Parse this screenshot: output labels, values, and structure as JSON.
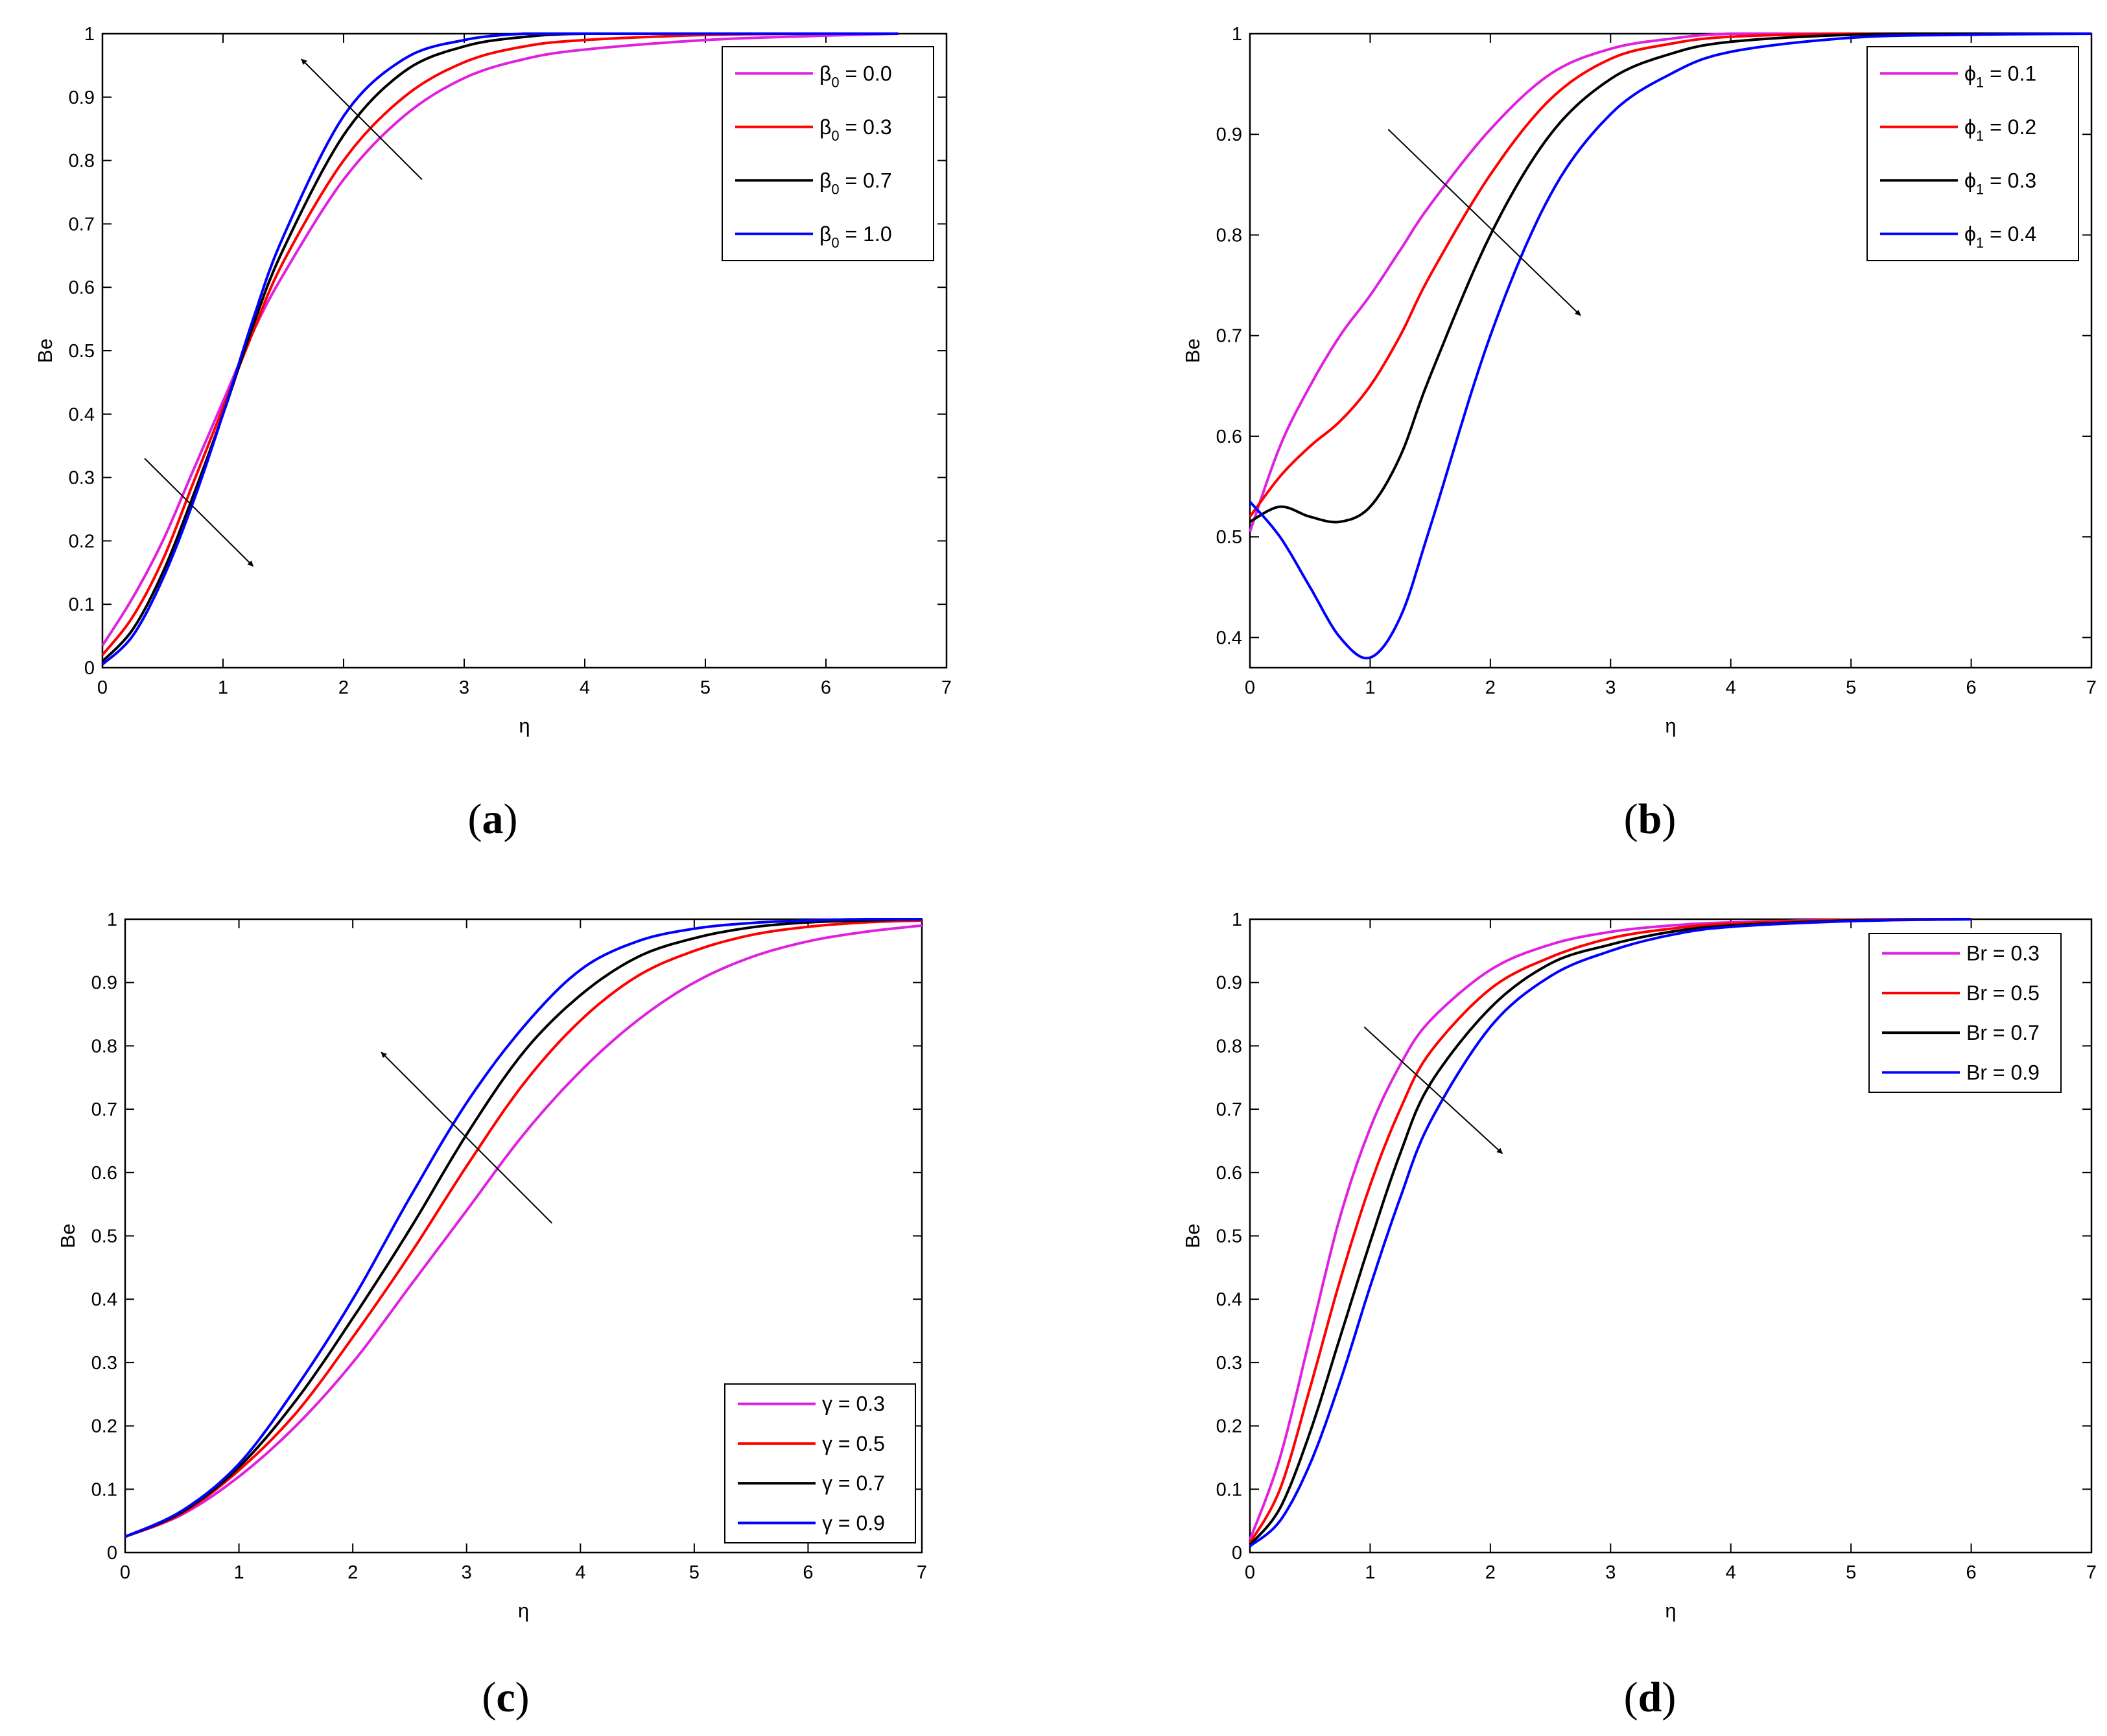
{
  "chart_data": [
    {
      "type": "line",
      "caption": "a",
      "xlabel": "η",
      "ylabel": "Be",
      "xlim": [
        0,
        7
      ],
      "ylim": [
        0,
        1
      ],
      "xticks": [
        "0",
        "1",
        "2",
        "3",
        "4",
        "5",
        "6",
        "7"
      ],
      "yticks": [
        "0",
        "0.1",
        "0.2",
        "0.3",
        "0.4",
        "0.5",
        "0.6",
        "0.7",
        "0.8",
        "0.9",
        "1"
      ],
      "legend_position": "top-right",
      "series": [
        {
          "name": "β",
          "sub": "0",
          "value": " = 0.0",
          "color": "#e020e0",
          "x": [
            0,
            0.25,
            0.5,
            0.75,
            1,
            1.25,
            1.5,
            2,
            2.5,
            3,
            3.5,
            4,
            5,
            6,
            6.6
          ],
          "y": [
            0.035,
            0.11,
            0.2,
            0.31,
            0.42,
            0.53,
            0.62,
            0.77,
            0.87,
            0.93,
            0.96,
            0.975,
            0.99,
            0.997,
            1.0
          ]
        },
        {
          "name": "β",
          "sub": "0",
          "value": " = 0.3",
          "color": "#ff0000",
          "x": [
            0,
            0.25,
            0.5,
            0.75,
            1,
            1.25,
            1.5,
            2,
            2.5,
            3,
            3.5,
            4,
            5,
            6,
            6.6
          ],
          "y": [
            0.02,
            0.08,
            0.17,
            0.29,
            0.41,
            0.53,
            0.64,
            0.8,
            0.9,
            0.955,
            0.98,
            0.99,
            0.998,
            1.0,
            1.0
          ]
        },
        {
          "name": "β",
          "sub": "0",
          "value": " = 0.7",
          "color": "#000000",
          "x": [
            0,
            0.25,
            0.5,
            0.75,
            1,
            1.25,
            1.5,
            2,
            2.5,
            3,
            3.5,
            4,
            5,
            6,
            6.6
          ],
          "y": [
            0.01,
            0.06,
            0.15,
            0.27,
            0.4,
            0.54,
            0.66,
            0.84,
            0.94,
            0.98,
            0.995,
            1.0,
            1.0,
            1.0,
            1.0
          ]
        },
        {
          "name": "β",
          "sub": "0",
          "value": " = 1.0",
          "color": "#0000ff",
          "x": [
            0,
            0.25,
            0.5,
            0.75,
            1,
            1.25,
            1.5,
            2,
            2.5,
            3,
            3.5,
            4,
            5,
            6,
            6.6
          ],
          "y": [
            0.005,
            0.05,
            0.14,
            0.26,
            0.4,
            0.55,
            0.68,
            0.87,
            0.96,
            0.99,
            1.0,
            1.0,
            1.0,
            1.0,
            1.0
          ]
        }
      ],
      "arrows": [
        {
          "from": [
            2.65,
            0.77
          ],
          "to": [
            1.65,
            0.96
          ]
        },
        {
          "from": [
            0.35,
            0.33
          ],
          "to": [
            1.25,
            0.16
          ]
        }
      ]
    },
    {
      "type": "line",
      "caption": "b",
      "xlabel": "η",
      "ylabel": "Be",
      "xlim": [
        0,
        7
      ],
      "ylim": [
        0.37,
        1
      ],
      "xticks": [
        "0",
        "1",
        "2",
        "3",
        "4",
        "5",
        "6",
        "7"
      ],
      "yticks": [
        "0.4",
        "0.5",
        "0.6",
        "0.7",
        "0.8",
        "0.9",
        "1"
      ],
      "legend_position": "top-right",
      "series": [
        {
          "name": "ϕ",
          "sub": "1",
          "value": " = 0.1",
          "color": "#e020e0",
          "x": [
            0,
            0.25,
            0.5,
            0.75,
            1,
            1.25,
            1.5,
            2,
            2.5,
            3,
            3.5,
            4,
            5,
            6,
            7
          ],
          "y": [
            0.505,
            0.59,
            0.65,
            0.7,
            0.74,
            0.785,
            0.83,
            0.905,
            0.96,
            0.985,
            0.995,
            1.0,
            1.0,
            1.0,
            1.0
          ]
        },
        {
          "name": "ϕ",
          "sub": "1",
          "value": " = 0.2",
          "color": "#ff0000",
          "x": [
            0,
            0.25,
            0.5,
            0.75,
            1,
            1.25,
            1.5,
            2,
            2.5,
            3,
            3.5,
            4,
            5,
            6,
            7
          ],
          "y": [
            0.52,
            0.56,
            0.59,
            0.615,
            0.65,
            0.7,
            0.76,
            0.86,
            0.935,
            0.975,
            0.99,
            0.997,
            1.0,
            1.0,
            1.0
          ]
        },
        {
          "name": "ϕ",
          "sub": "1",
          "value": " = 0.3",
          "color": "#000000",
          "x": [
            0,
            0.25,
            0.5,
            0.75,
            1,
            1.25,
            1.5,
            2,
            2.5,
            3,
            3.5,
            4,
            5,
            6,
            7
          ],
          "y": [
            0.515,
            0.53,
            0.52,
            0.515,
            0.53,
            0.58,
            0.66,
            0.8,
            0.9,
            0.955,
            0.98,
            0.992,
            0.999,
            1.0,
            1.0
          ]
        },
        {
          "name": "ϕ",
          "sub": "1",
          "value": " = 0.4",
          "color": "#0000ff",
          "x": [
            0,
            0.25,
            0.5,
            0.75,
            1,
            1.25,
            1.5,
            2,
            2.5,
            3,
            3.5,
            4,
            5,
            6,
            7
          ],
          "y": [
            0.535,
            0.5,
            0.45,
            0.4,
            0.38,
            0.42,
            0.51,
            0.7,
            0.84,
            0.92,
            0.96,
            0.982,
            0.996,
            0.999,
            1.0
          ]
        }
      ],
      "arrows": [
        {
          "from": [
            1.15,
            0.905
          ],
          "to": [
            2.75,
            0.72
          ]
        }
      ]
    },
    {
      "type": "line",
      "caption": "c",
      "xlabel": "η",
      "ylabel": "Be",
      "xlim": [
        0,
        7
      ],
      "ylim": [
        0,
        1
      ],
      "xticks": [
        "0",
        "1",
        "2",
        "3",
        "4",
        "5",
        "6",
        "7"
      ],
      "yticks": [
        "0",
        "0.1",
        "0.2",
        "0.3",
        "0.4",
        "0.5",
        "0.6",
        "0.7",
        "0.8",
        "0.9",
        "1"
      ],
      "legend_position": "bottom-right",
      "series": [
        {
          "name": "γ",
          "sub": "",
          "value": " = 0.3",
          "color": "#e020e0",
          "x": [
            0,
            0.5,
            1,
            1.5,
            2,
            2.5,
            3,
            3.5,
            4,
            4.5,
            5,
            5.5,
            6,
            6.5,
            7
          ],
          "y": [
            0.025,
            0.06,
            0.12,
            0.2,
            0.3,
            0.42,
            0.54,
            0.66,
            0.76,
            0.84,
            0.9,
            0.94,
            0.965,
            0.98,
            0.99
          ]
        },
        {
          "name": "γ",
          "sub": "",
          "value": " = 0.5",
          "color": "#ff0000",
          "x": [
            0,
            0.5,
            1,
            1.5,
            2,
            2.5,
            3,
            3.5,
            4,
            4.5,
            5,
            5.5,
            6,
            6.5,
            7
          ],
          "y": [
            0.025,
            0.062,
            0.13,
            0.22,
            0.34,
            0.47,
            0.61,
            0.74,
            0.84,
            0.91,
            0.95,
            0.975,
            0.988,
            0.995,
            0.998
          ]
        },
        {
          "name": "γ",
          "sub": "",
          "value": " = 0.7",
          "color": "#000000",
          "x": [
            0,
            0.5,
            1,
            1.5,
            2,
            2.5,
            3,
            3.5,
            4,
            4.5,
            5,
            5.5,
            6,
            6.5,
            7
          ],
          "y": [
            0.025,
            0.064,
            0.135,
            0.24,
            0.37,
            0.51,
            0.66,
            0.79,
            0.88,
            0.94,
            0.97,
            0.987,
            0.995,
            0.998,
            1.0
          ]
        },
        {
          "name": "γ",
          "sub": "",
          "value": " = 0.9",
          "color": "#0000ff",
          "x": [
            0,
            0.5,
            1,
            1.5,
            2,
            2.5,
            3,
            3.5,
            4,
            4.5,
            5,
            5.5,
            6,
            6.5,
            7
          ],
          "y": [
            0.025,
            0.066,
            0.14,
            0.26,
            0.4,
            0.56,
            0.71,
            0.83,
            0.92,
            0.965,
            0.985,
            0.994,
            0.998,
            1.0,
            1.0
          ]
        }
      ],
      "arrows": [
        {
          "from": [
            3.75,
            0.52
          ],
          "to": [
            2.25,
            0.79
          ]
        }
      ]
    },
    {
      "type": "line",
      "caption": "d",
      "xlabel": "η",
      "ylabel": "Be",
      "xlim": [
        0,
        7
      ],
      "ylim": [
        0,
        1
      ],
      "xticks": [
        "0",
        "1",
        "2",
        "3",
        "4",
        "5",
        "6",
        "7"
      ],
      "yticks": [
        "0",
        "0.1",
        "0.2",
        "0.3",
        "0.4",
        "0.5",
        "0.6",
        "0.7",
        "0.8",
        "0.9",
        "1"
      ],
      "legend_position": "top-right",
      "series": [
        {
          "name": "Br",
          "sub": "",
          "value": " = 0.3",
          "color": "#e020e0",
          "x": [
            0,
            0.25,
            0.5,
            0.75,
            1,
            1.25,
            1.5,
            2,
            2.5,
            3,
            3.5,
            4,
            5,
            6
          ],
          "y": [
            0.02,
            0.15,
            0.34,
            0.53,
            0.67,
            0.77,
            0.84,
            0.92,
            0.96,
            0.98,
            0.99,
            0.995,
            0.999,
            1.0
          ]
        },
        {
          "name": "Br",
          "sub": "",
          "value": " = 0.5",
          "color": "#ff0000",
          "x": [
            0,
            0.25,
            0.5,
            0.75,
            1,
            1.25,
            1.5,
            2,
            2.5,
            3,
            3.5,
            4,
            5,
            6
          ],
          "y": [
            0.015,
            0.1,
            0.26,
            0.43,
            0.58,
            0.7,
            0.79,
            0.89,
            0.94,
            0.97,
            0.985,
            0.993,
            0.999,
            1.0
          ]
        },
        {
          "name": "Br",
          "sub": "",
          "value": " = 0.7",
          "color": "#000000",
          "x": [
            0,
            0.25,
            0.5,
            0.75,
            1,
            1.25,
            1.5,
            2,
            2.5,
            3,
            3.5,
            4,
            5,
            6
          ],
          "y": [
            0.012,
            0.07,
            0.19,
            0.34,
            0.49,
            0.63,
            0.74,
            0.86,
            0.93,
            0.96,
            0.98,
            0.99,
            0.998,
            1.0
          ]
        },
        {
          "name": "Br",
          "sub": "",
          "value": " = 0.9",
          "color": "#0000ff",
          "x": [
            0,
            0.25,
            0.5,
            0.75,
            1,
            1.25,
            1.5,
            2,
            2.5,
            3,
            3.5,
            4,
            5,
            6
          ],
          "y": [
            0.01,
            0.05,
            0.14,
            0.27,
            0.42,
            0.56,
            0.68,
            0.83,
            0.91,
            0.95,
            0.975,
            0.988,
            0.997,
            1.0
          ]
        }
      ],
      "arrows": [
        {
          "from": [
            0.95,
            0.83
          ],
          "to": [
            2.1,
            0.63
          ]
        }
      ]
    }
  ]
}
